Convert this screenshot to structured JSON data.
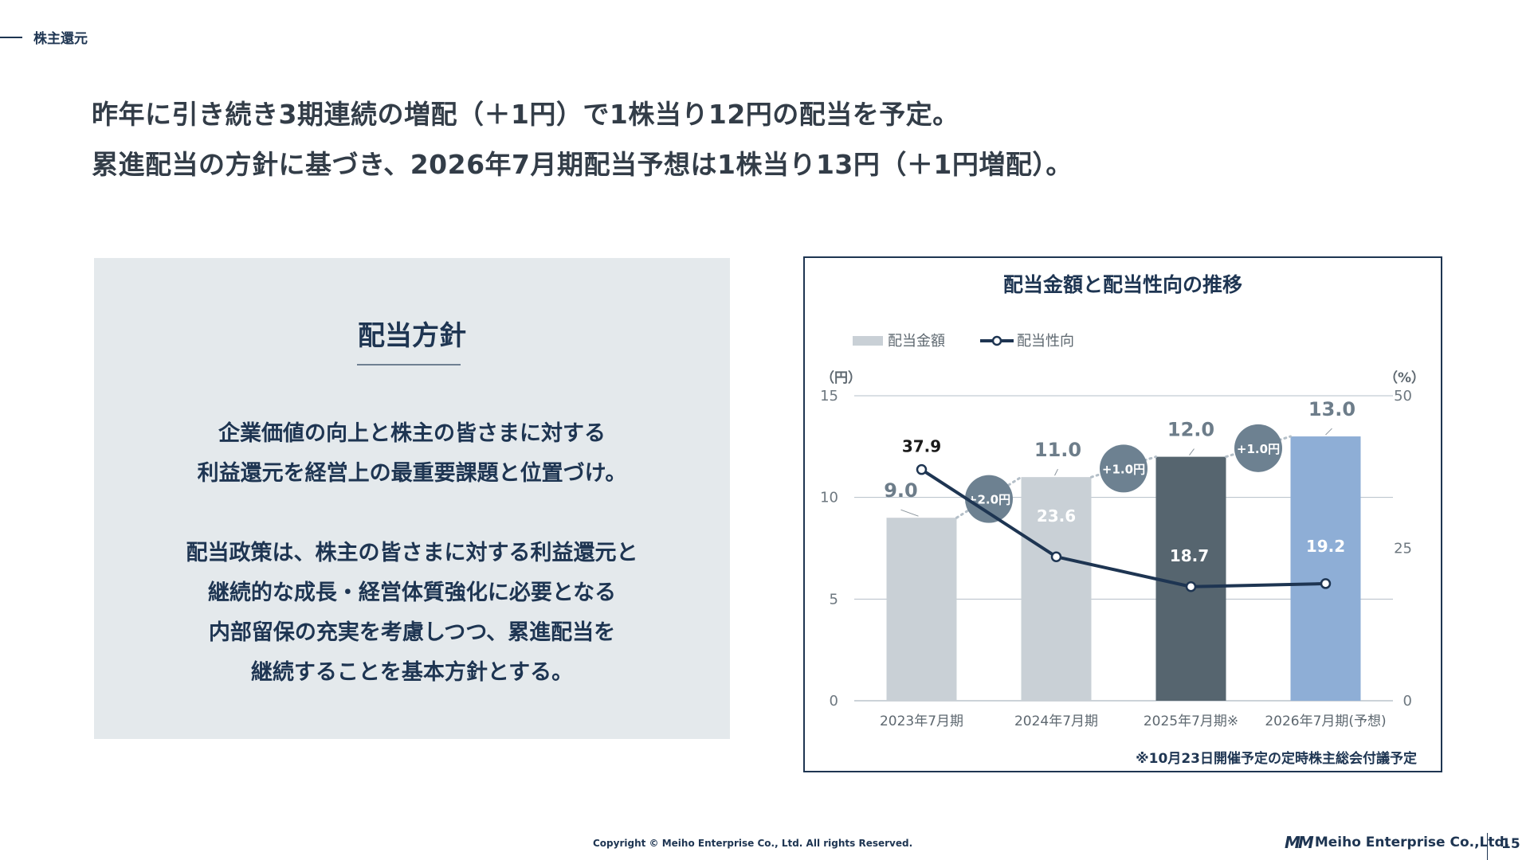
{
  "section": {
    "label": "株主還元"
  },
  "headline": {
    "line1": "昨年に引き続き3期連続の増配（＋1円）で1株当り12円の配当を予定。",
    "line2": "累進配当の方針に基づき、2026年7月期配当予想は1株当り13円（＋1円増配）。"
  },
  "policy": {
    "title": "配当方針",
    "lines": [
      "企業価値の向上と株主の皆さまに対する",
      "利益還元を経営上の最重要課題と位置づけ。",
      "",
      "配当政策は、株主の皆さまに対する利益還元と",
      "継続的な成長・経営体質強化に必要となる",
      "内部留保の充実を考慮しつつ、累進配当を",
      "継続することを基本方針とする。"
    ]
  },
  "chart_data": {
    "type": "bar",
    "title": "配当金額と配当性向の推移",
    "categories": [
      "2023年7月期",
      "2024年7月期",
      "2025年7月期※",
      "2026年7月期(予想)"
    ],
    "series": [
      {
        "name": "配当金額",
        "type": "bar",
        "axis": "left",
        "values": [
          9.0,
          11.0,
          12.0,
          13.0
        ],
        "labels": [
          "9.0",
          "11.0",
          "12.0",
          "13.0"
        ],
        "colors": [
          "#c9d0d6",
          "#c9d0d6",
          "#56656f",
          "#8eaed6"
        ]
      },
      {
        "name": "配当性向",
        "type": "line",
        "axis": "right",
        "values": [
          37.9,
          23.6,
          18.7,
          19.2
        ],
        "labels": [
          "37.9",
          "23.6",
          "18.7",
          "19.2"
        ],
        "color": "#1e3552"
      }
    ],
    "left_axis": {
      "unit": "（円）",
      "min": 0,
      "max": 15,
      "ticks": [
        "0",
        "5",
        "10",
        "15"
      ]
    },
    "right_axis": {
      "unit": "（%）",
      "min": 0,
      "max": 50,
      "ticks": [
        "0",
        "25",
        "50"
      ]
    },
    "increments": [
      "+2.0円",
      "+1.0円",
      "+1.0円"
    ],
    "increment_color": "#6d8191",
    "note": "※10月23日開催予定の定時株主総会付議予定",
    "legend_position": "top-left"
  },
  "footer": {
    "copyright": "Copyright © Meiho Enterprise Co., Ltd. All rights Reserved.",
    "logo_mark": "MM",
    "company": "Meiho Enterprise Co.,Ltd.",
    "page": "15"
  }
}
